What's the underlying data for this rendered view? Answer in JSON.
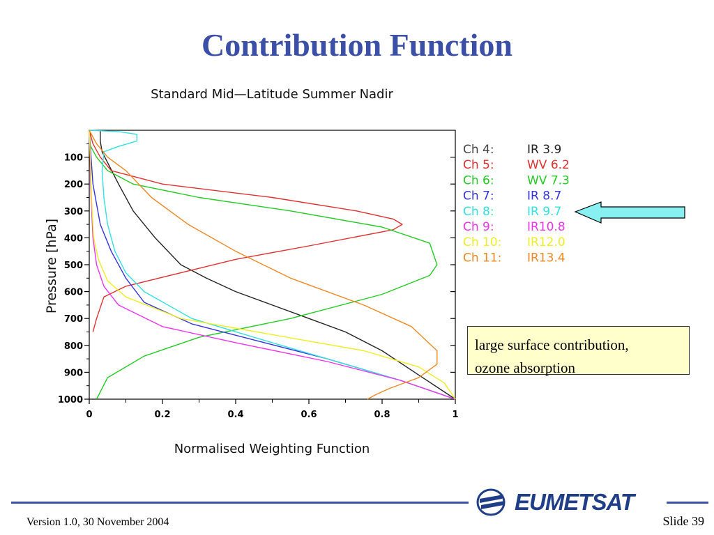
{
  "slide": {
    "title": "Contribution Function",
    "footer_version": "Version 1.0, 30 November 2004",
    "footer_slide": "Slide 39",
    "logo_text": "EUMETSAT",
    "callout_line1": "large surface contribution,",
    "callout_line2": "ozone absorption",
    "colors": {
      "title": "#3a4fa5",
      "callout_bg": "#ffffcc",
      "arrow": "#88f0f0",
      "rule": "#3a4fa5"
    }
  },
  "chart_data": {
    "type": "line",
    "title": "Standard Mid—Latitude Summer Nadir",
    "xlabel": "Normalised Weighting Function",
    "ylabel": "Pressure [hPa]",
    "xlim": [
      0,
      1
    ],
    "ylim": [
      1000,
      0
    ],
    "y_inverted": true,
    "grid": false,
    "legend_position": "right",
    "x_ticks": [
      "0",
      "0.2",
      "0.4",
      "0.6",
      "0.8",
      "1"
    ],
    "y_ticks": [
      "100",
      "200",
      "300",
      "400",
      "500",
      "600",
      "700",
      "800",
      "900",
      "1000"
    ],
    "series": [
      {
        "label_prefix": "Ch   4:",
        "label_value": "IR  3.9",
        "prefix_color": "#444444",
        "color": "#222222",
        "x": [
          0.03,
          0.03,
          0.035,
          0.05,
          0.08,
          0.12,
          0.18,
          0.25,
          0.32,
          0.4,
          0.5,
          0.6,
          0.7,
          0.8,
          0.9,
          1.0
        ],
        "y": [
          0,
          40,
          80,
          120,
          200,
          300,
          400,
          500,
          550,
          600,
          650,
          700,
          750,
          820,
          910,
          1000
        ]
      },
      {
        "label_prefix": "Ch   5:",
        "label_value": "WV  6.2",
        "prefix_color": "#e03030",
        "color": "#e03030",
        "x": [
          0.0,
          0.01,
          0.03,
          0.06,
          0.2,
          0.5,
          0.73,
          0.83,
          0.855,
          0.83,
          0.6,
          0.4,
          0.25,
          0.1,
          0.04,
          0.02,
          0.01
        ],
        "y": [
          0,
          50,
          100,
          150,
          200,
          250,
          300,
          330,
          350,
          370,
          430,
          480,
          530,
          580,
          620,
          700,
          750
        ]
      },
      {
        "label_prefix": "Ch   6:",
        "label_value": "WV  7.3",
        "prefix_color": "#22cc22",
        "color": "#22cc22",
        "x": [
          0.0,
          0.02,
          0.05,
          0.12,
          0.3,
          0.55,
          0.8,
          0.93,
          0.95,
          0.93,
          0.8,
          0.55,
          0.3,
          0.15,
          0.05,
          0.02
        ],
        "y": [
          50,
          100,
          150,
          200,
          250,
          300,
          360,
          420,
          500,
          540,
          610,
          700,
          770,
          840,
          920,
          1000
        ]
      },
      {
        "label_prefix": "Ch   7:",
        "label_value": "IR  8.7",
        "prefix_color": "#3333dd",
        "color": "#3333dd",
        "x": [
          0.0,
          0.005,
          0.01,
          0.03,
          0.06,
          0.1,
          0.15,
          0.28,
          0.45,
          0.65,
          0.85,
          1.0
        ],
        "y": [
          0,
          100,
          200,
          350,
          450,
          550,
          640,
          720,
          780,
          850,
          930,
          1000
        ]
      },
      {
        "label_prefix": "Ch   8:",
        "label_value": "IR  9.7",
        "prefix_color": "#33e0e0",
        "color": "#33e0e0",
        "x": [
          0.0,
          0.08,
          0.13,
          0.13,
          0.08,
          0.04,
          0.035,
          0.04,
          0.05,
          0.07,
          0.1,
          0.15,
          0.28,
          0.45,
          0.65,
          0.85,
          1.0
        ],
        "y": [
          0,
          5,
          15,
          40,
          60,
          80,
          150,
          250,
          350,
          450,
          530,
          600,
          700,
          770,
          850,
          930,
          1000
        ]
      },
      {
        "label_prefix": "Ch   9:",
        "label_value": "IR10.8",
        "prefix_color": "#ee33ee",
        "color": "#ee33ee",
        "x": [
          0.0,
          0.002,
          0.005,
          0.01,
          0.02,
          0.04,
          0.08,
          0.2,
          0.4,
          0.65,
          0.85,
          1.0
        ],
        "y": [
          0,
          100,
          250,
          400,
          500,
          580,
          650,
          730,
          790,
          860,
          930,
          1000
        ]
      },
      {
        "label_prefix": "Ch  10:",
        "label_value": "IR12.0",
        "prefix_color": "#eeee22",
        "color": "#eeee22",
        "x": [
          0.0,
          0.003,
          0.006,
          0.012,
          0.025,
          0.05,
          0.1,
          0.25,
          0.5,
          0.75,
          0.9,
          0.97,
          1.0
        ],
        "y": [
          0,
          100,
          250,
          400,
          480,
          560,
          620,
          700,
          760,
          820,
          880,
          940,
          1000
        ]
      },
      {
        "label_prefix": "Ch  11:",
        "label_value": "IR13.4",
        "prefix_color": "#ee8822",
        "color": "#ee8822",
        "x": [
          0.0,
          0.02,
          0.05,
          0.1,
          0.17,
          0.27,
          0.4,
          0.55,
          0.75,
          0.88,
          0.95,
          0.95,
          0.9,
          0.82,
          0.78,
          0.76
        ],
        "y": [
          0,
          50,
          100,
          150,
          250,
          350,
          450,
          550,
          650,
          730,
          820,
          870,
          920,
          960,
          985,
          1000
        ]
      }
    ]
  }
}
